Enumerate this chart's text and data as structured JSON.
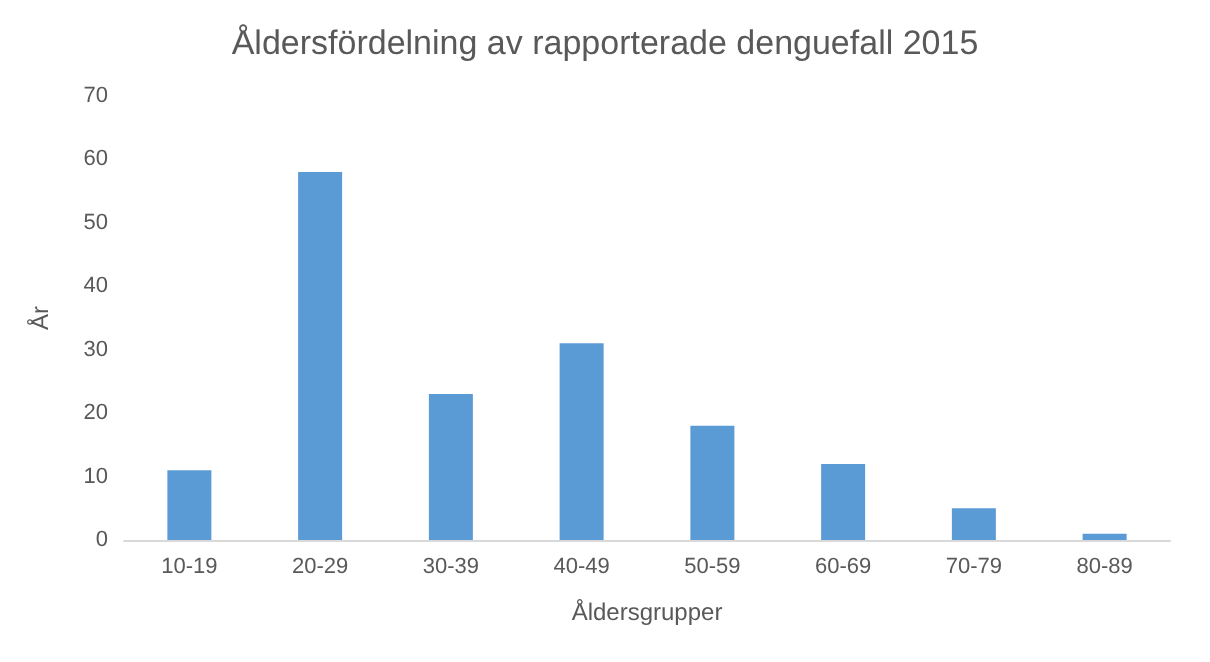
{
  "chart_data": {
    "type": "bar",
    "title": "Åldersfördelning av rapporterade denguefall 2015",
    "xlabel": "Åldersgrupper",
    "ylabel": "År",
    "categories": [
      "10-19",
      "20-29",
      "30-39",
      "40-49",
      "50-59",
      "60-69",
      "70-79",
      "80-89"
    ],
    "values": [
      11,
      58,
      23,
      31,
      18,
      12,
      5,
      1
    ],
    "color": "#5b9bd5",
    "ylim": [
      0,
      70
    ],
    "yticks": [
      0,
      10,
      20,
      30,
      40,
      50,
      60,
      70
    ],
    "grid": false
  }
}
